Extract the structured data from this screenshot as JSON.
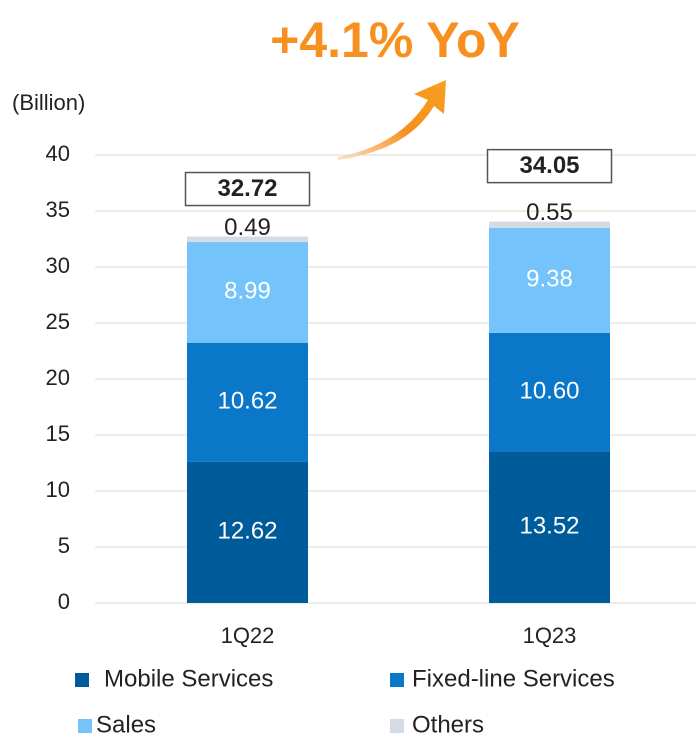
{
  "chart_data": {
    "type": "stacked_bar",
    "title": "+4.1% YoY",
    "y_label": "(Billion)",
    "categories": [
      "1Q22",
      "1Q23"
    ],
    "series": [
      {
        "name": "Mobile Services",
        "color": "#005b9a",
        "values": [
          12.62,
          13.52
        ],
        "value_labels": [
          "12.62",
          "13.52"
        ]
      },
      {
        "name": "Fixed-line Services",
        "color": "#0a77c8",
        "values": [
          10.62,
          10.6
        ],
        "value_labels": [
          "10.62",
          "10.60"
        ]
      },
      {
        "name": "Sales",
        "color": "#74c4fb",
        "values": [
          8.99,
          9.38
        ],
        "value_labels": [
          "8.99",
          "9.38"
        ]
      },
      {
        "name": "Others",
        "color": "#d5dbe4",
        "values": [
          0.49,
          0.55
        ],
        "value_labels": [
          "0.49",
          "0.55"
        ]
      }
    ],
    "totals": [
      32.72,
      34.05
    ],
    "ylim": [
      0,
      40
    ],
    "yticks": [
      0,
      5,
      10,
      15,
      20,
      25,
      30,
      35,
      40
    ],
    "grid": true
  }
}
